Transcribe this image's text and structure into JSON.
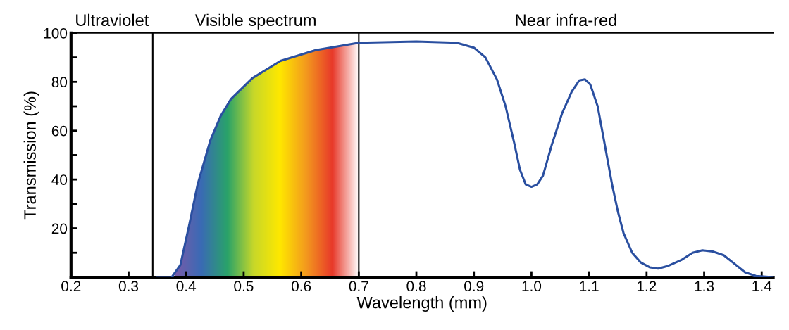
{
  "chart_data": {
    "type": "line",
    "xlabel": "Wavelength (mm)",
    "ylabel": "Transmission (%)",
    "xlim": [
      0.2,
      1.42
    ],
    "ylim": [
      0,
      100
    ],
    "xticks": [
      0.2,
      0.3,
      0.4,
      0.5,
      0.6,
      0.7,
      0.8,
      0.9,
      {
        "value": 1.0,
        "label": "1.0"
      },
      1.1,
      1.2,
      1.3,
      1.4
    ],
    "yticks": [
      {
        "value": 0,
        "label": null
      },
      {
        "value": 10,
        "label": null
      },
      20,
      {
        "value": 30,
        "label": null
      },
      40,
      {
        "value": 50,
        "label": null
      },
      60,
      {
        "value": 70,
        "label": null
      },
      80,
      {
        "value": 90,
        "label": null
      },
      100
    ],
    "grid": false,
    "legend": false,
    "marker": "none",
    "line_style": "solid",
    "series": [
      {
        "color": "#2a4fa0",
        "x": [
          0.35,
          0.375,
          0.39,
          0.405,
          0.42,
          0.442,
          0.46,
          0.478,
          0.515,
          0.564,
          0.625,
          0.7,
          0.8,
          0.87,
          0.9,
          0.92,
          0.94,
          0.955,
          0.97,
          0.98,
          0.99,
          1.0,
          1.01,
          1.02,
          1.035,
          1.053,
          1.07,
          1.083,
          1.093,
          1.102,
          1.115,
          1.126,
          1.14,
          1.15,
          1.16,
          1.175,
          1.19,
          1.206,
          1.22,
          1.236,
          1.26,
          1.28,
          1.297,
          1.315,
          1.334,
          1.35,
          1.371,
          1.39,
          1.42
        ],
        "values": [
          0,
          0,
          5,
          21,
          38,
          56,
          66,
          73,
          81.5,
          88.6,
          93,
          96,
          96.5,
          96,
          94,
          90,
          81,
          70,
          55,
          44,
          38,
          37,
          38,
          41.6,
          54,
          67,
          76,
          80.6,
          81,
          79,
          70,
          56,
          38,
          27,
          18,
          10,
          6,
          4,
          3.5,
          4.5,
          7,
          10,
          11,
          10.5,
          9,
          6,
          2,
          0.5,
          0
        ]
      }
    ],
    "ref_lines": [
      {
        "axis": "x",
        "value": 0.342,
        "color": "#000000"
      },
      {
        "axis": "x",
        "value": 0.7,
        "color": "#000000"
      }
    ],
    "annotations": [
      "Ultraviolet",
      "Visible spectrum",
      "Near infra-red"
    ]
  }
}
